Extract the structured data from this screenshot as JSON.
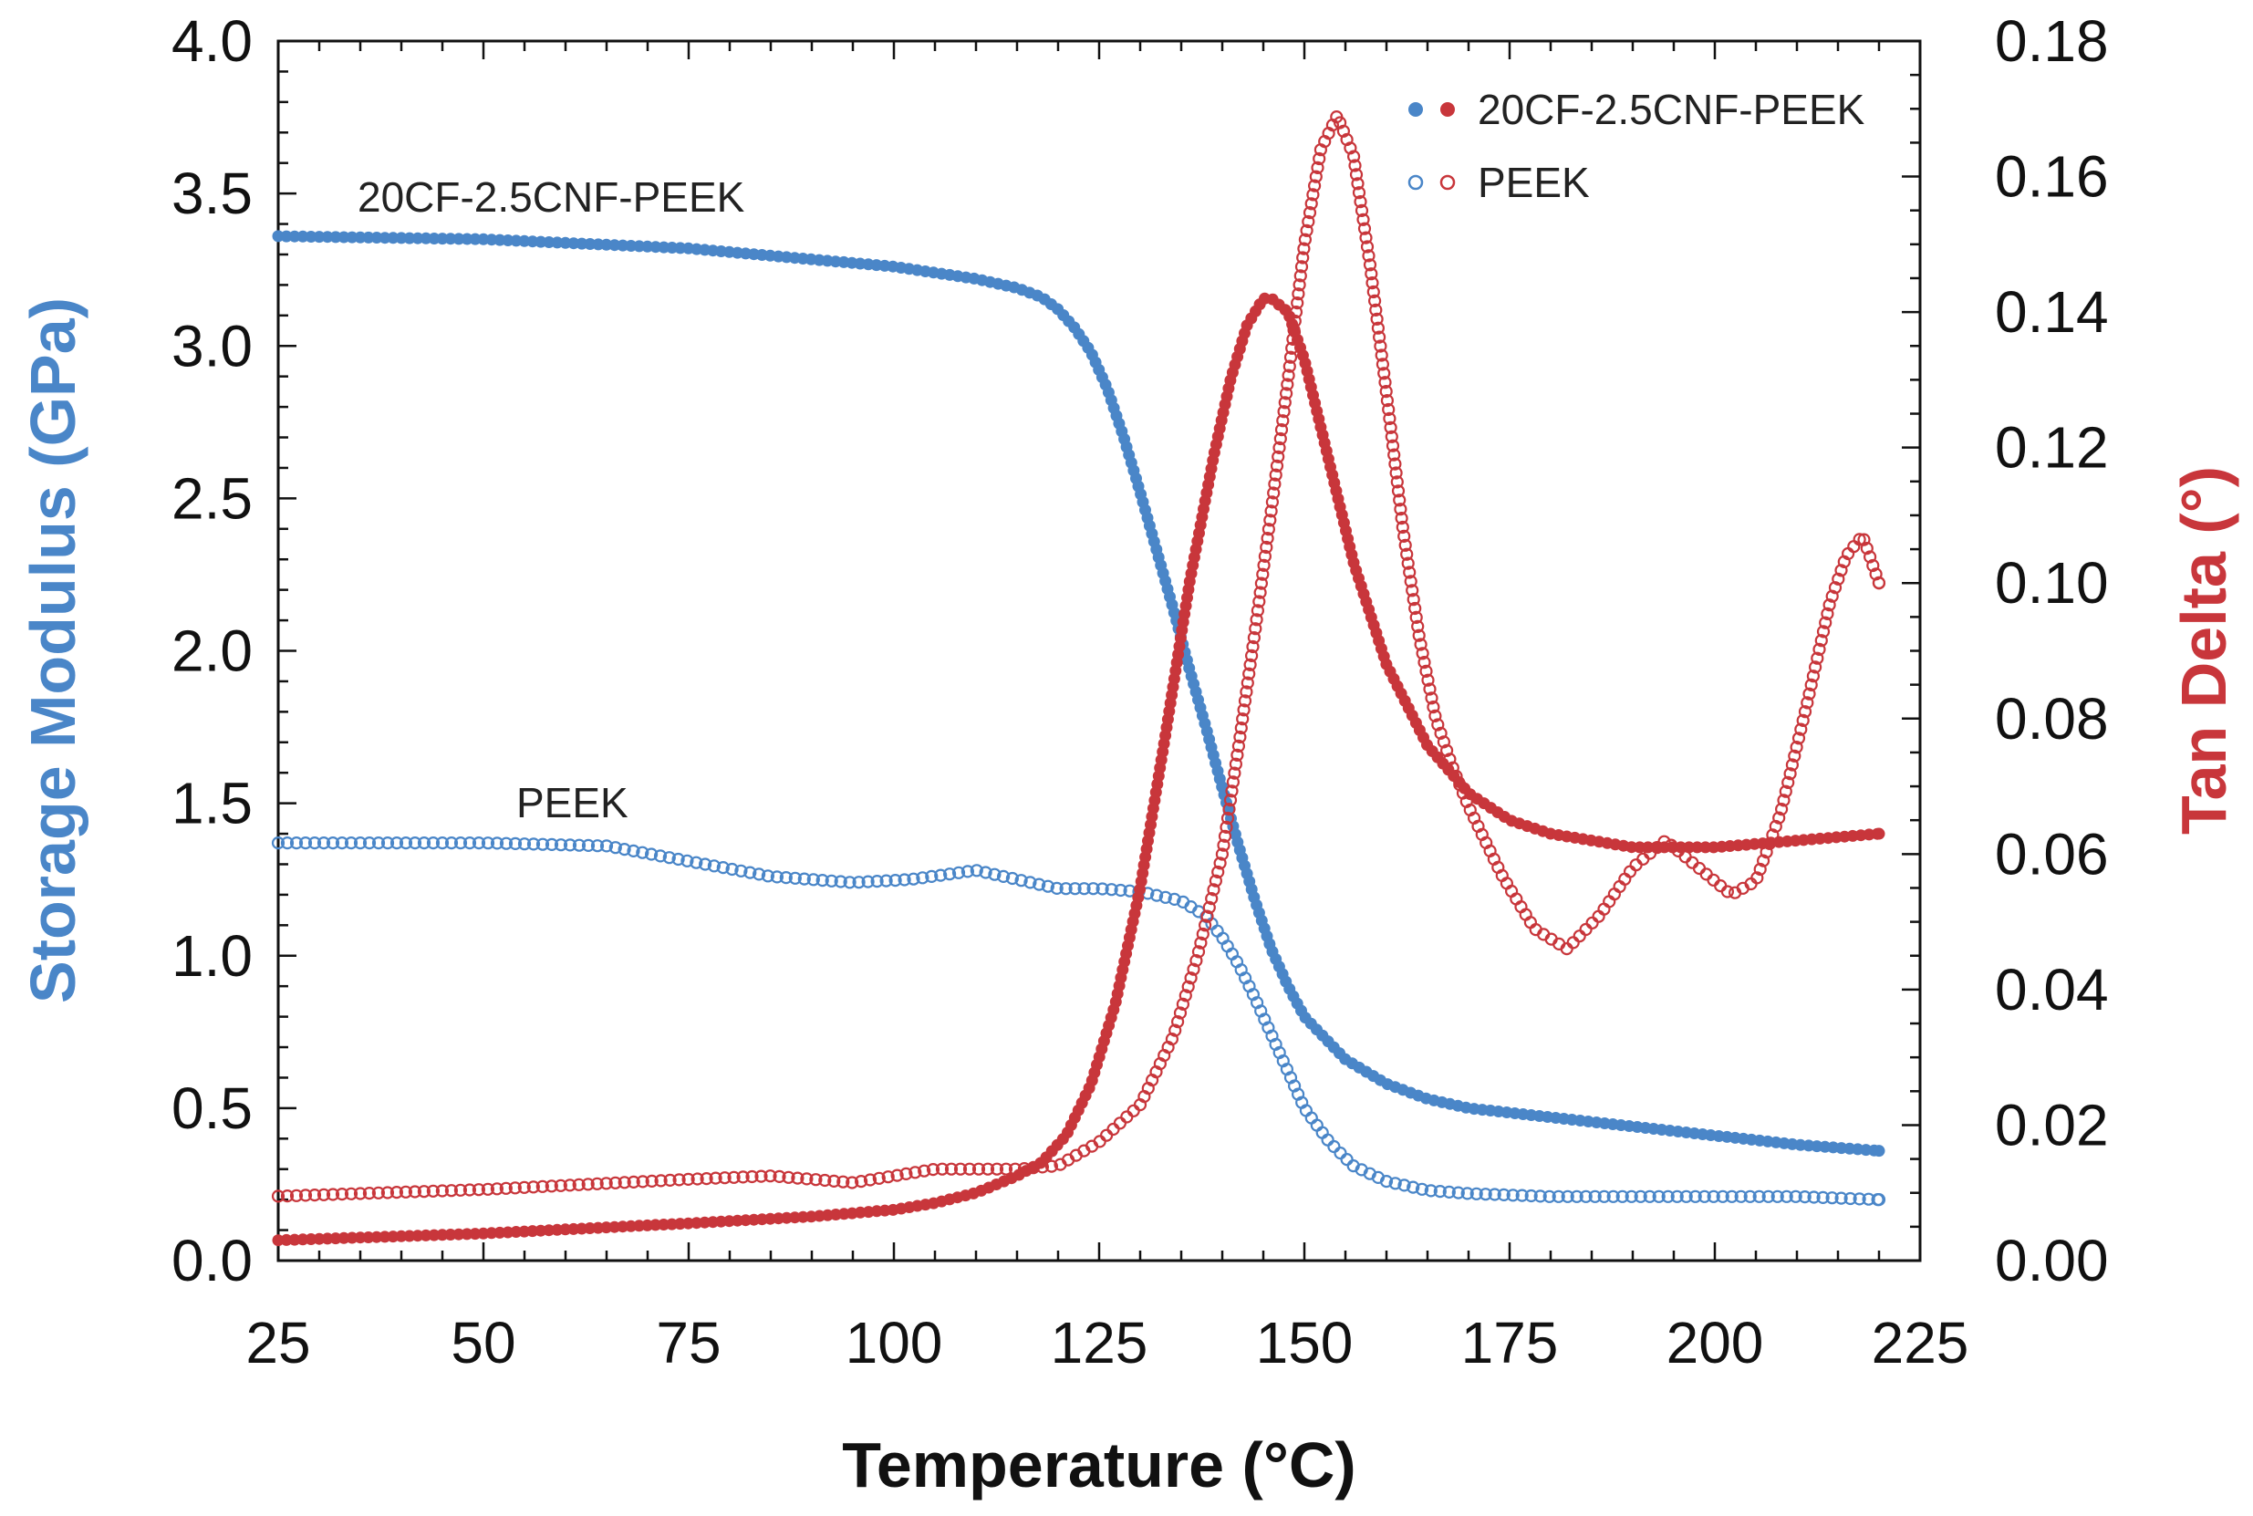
{
  "chart_data": {
    "type": "scatter",
    "title": "",
    "xlabel": "Temperature (°C)",
    "ylabel_left": "Storage Modulus (GPa)",
    "ylabel_right": "Tan Delta (°)",
    "xlim": [
      25,
      225
    ],
    "ylim_left": [
      0.0,
      4.0
    ],
    "ylim_right": [
      0.0,
      0.18
    ],
    "x_ticks": [
      "25",
      "50",
      "75",
      "100",
      "125",
      "150",
      "175",
      "200",
      "225"
    ],
    "y_left_ticks": [
      "0.0",
      "0.5",
      "1.0",
      "1.5",
      "2.0",
      "2.5",
      "3.0",
      "3.5",
      "4.0"
    ],
    "y_right_ticks": [
      "0.00",
      "0.02",
      "0.04",
      "0.06",
      "0.08",
      "0.10",
      "0.12",
      "0.14",
      "0.16",
      "0.18"
    ],
    "grid": false,
    "legend": {
      "position": "top-right",
      "entries": [
        {
          "label": "20CF-2.5CNF-PEEK",
          "style": "filled"
        },
        {
          "label": "PEEK",
          "style": "open"
        }
      ]
    },
    "annotations": [
      {
        "text": "20CF-2.5CNF-PEEK",
        "x": 55,
        "y_left": 3.5
      },
      {
        "text": "PEEK",
        "x": 60,
        "y_left": 1.47
      }
    ],
    "colors": {
      "modulus": "#4a86c8",
      "tan_delta": "#c8363b",
      "axis": "#111111"
    },
    "series": [
      {
        "name": "20CF-2.5CNF-PEEK Storage Modulus",
        "axis": "left",
        "marker": "filled",
        "color": "#4a86c8",
        "x": [
          25,
          50,
          75,
          100,
          110,
          115,
          118,
          120,
          122,
          124,
          126,
          128,
          130,
          132,
          134,
          136,
          138,
          140,
          142,
          144,
          146,
          148,
          150,
          155,
          160,
          165,
          170,
          180,
          190,
          200,
          210,
          220
        ],
        "y": [
          3.36,
          3.35,
          3.32,
          3.26,
          3.22,
          3.19,
          3.16,
          3.12,
          3.06,
          2.98,
          2.86,
          2.7,
          2.52,
          2.33,
          2.14,
          1.94,
          1.75,
          1.55,
          1.36,
          1.18,
          1.02,
          0.9,
          0.8,
          0.66,
          0.58,
          0.53,
          0.5,
          0.47,
          0.44,
          0.41,
          0.38,
          0.36
        ]
      },
      {
        "name": "PEEK Storage Modulus",
        "axis": "left",
        "marker": "open",
        "color": "#4a86c8",
        "x": [
          25,
          50,
          65,
          75,
          85,
          95,
          102,
          110,
          115,
          120,
          125,
          130,
          135,
          138,
          140,
          142,
          144,
          146,
          148,
          150,
          153,
          156,
          160,
          165,
          170,
          180,
          190,
          200,
          210,
          220
        ],
        "y": [
          1.37,
          1.37,
          1.36,
          1.31,
          1.26,
          1.24,
          1.25,
          1.28,
          1.25,
          1.22,
          1.22,
          1.21,
          1.18,
          1.13,
          1.06,
          0.97,
          0.86,
          0.74,
          0.62,
          0.5,
          0.39,
          0.31,
          0.26,
          0.23,
          0.22,
          0.21,
          0.21,
          0.21,
          0.21,
          0.2
        ]
      },
      {
        "name": "20CF-2.5CNF-PEEK Tan Delta",
        "axis": "right",
        "marker": "filled",
        "color": "#c8363b",
        "x": [
          25,
          50,
          75,
          90,
          100,
          105,
          110,
          115,
          118,
          121,
          124,
          127,
          130,
          133,
          136,
          139,
          141,
          143,
          145,
          146,
          148,
          150,
          153,
          156,
          160,
          165,
          170,
          175,
          180,
          190,
          200,
          210,
          220
        ],
        "y": [
          0.003,
          0.004,
          0.0055,
          0.0065,
          0.0075,
          0.0085,
          0.01,
          0.0125,
          0.0145,
          0.0185,
          0.026,
          0.038,
          0.055,
          0.077,
          0.1,
          0.119,
          0.13,
          0.138,
          0.142,
          0.142,
          0.14,
          0.133,
          0.118,
          0.103,
          0.088,
          0.076,
          0.069,
          0.065,
          0.063,
          0.061,
          0.061,
          0.062,
          0.063
        ]
      },
      {
        "name": "PEEK Tan Delta",
        "axis": "right",
        "marker": "open",
        "color": "#c8363b",
        "x": [
          25,
          50,
          75,
          85,
          95,
          105,
          110,
          115,
          120,
          125,
          130,
          134,
          137,
          140,
          142,
          144,
          146,
          148,
          150,
          152,
          154,
          156,
          158,
          160,
          162,
          164,
          166,
          168,
          170,
          174,
          178,
          182,
          186,
          190,
          194,
          198,
          202,
          205,
          208,
          211,
          214,
          216,
          218,
          220
        ],
        "y": [
          0.0095,
          0.0105,
          0.012,
          0.0125,
          0.0115,
          0.0135,
          0.0135,
          0.0135,
          0.014,
          0.0175,
          0.023,
          0.033,
          0.045,
          0.06,
          0.076,
          0.093,
          0.111,
          0.13,
          0.15,
          0.164,
          0.169,
          0.163,
          0.147,
          0.128,
          0.108,
          0.092,
          0.08,
          0.073,
          0.067,
          0.057,
          0.049,
          0.046,
          0.051,
          0.058,
          0.062,
          0.058,
          0.054,
          0.056,
          0.066,
          0.081,
          0.097,
          0.104,
          0.107,
          0.1
        ]
      }
    ]
  }
}
